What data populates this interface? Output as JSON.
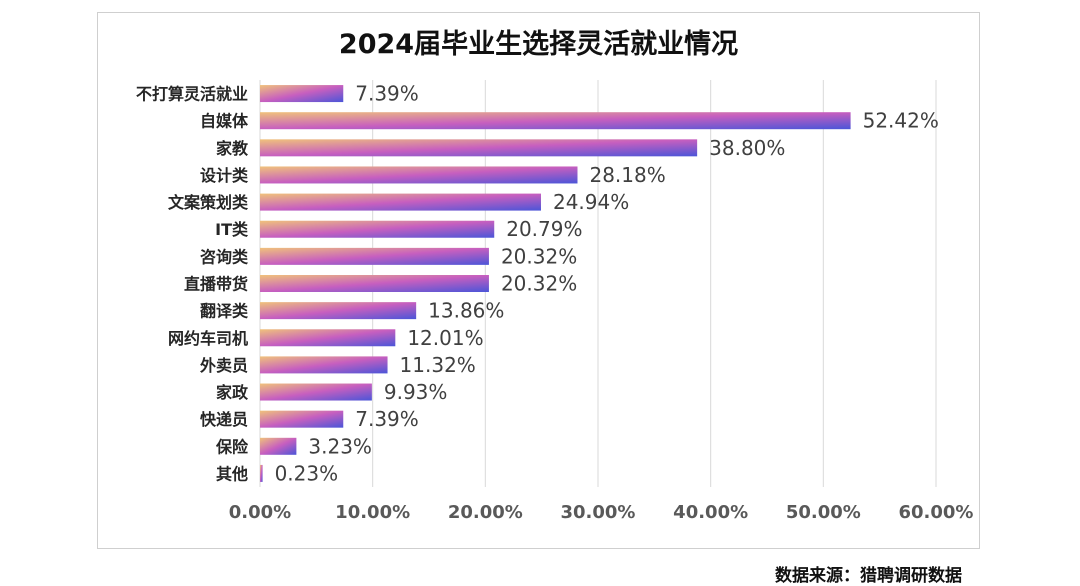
{
  "title": "2024届毕业生选择灵活就业情况",
  "source": "数据来源：猎聘调研数据",
  "colors": {
    "bar_start": "#f0c27b",
    "bar_mid": "#c75fbf",
    "bar_end": "#4b55d8",
    "grid": "#d9d9d9",
    "tick_text": "#595959",
    "category_text": "#262626",
    "value_text": "#404040"
  },
  "chart_data": {
    "type": "bar",
    "orientation": "horizontal",
    "title": "2024届毕业生选择灵活就业情况",
    "xlabel": "",
    "ylabel": "",
    "xlim": [
      0,
      60
    ],
    "x_ticks": [
      "0.00%",
      "10.00%",
      "20.00%",
      "30.00%",
      "40.00%",
      "50.00%",
      "60.00%"
    ],
    "grid": true,
    "legend": "none",
    "categories": [
      "不打算灵活就业",
      "自媒体",
      "家教",
      "设计类",
      "文案策划类",
      "IT类",
      "咨询类",
      "直播带货",
      "翻译类",
      "网约车司机",
      "外卖员",
      "家政",
      "快递员",
      "保险",
      "其他"
    ],
    "values": [
      7.39,
      52.42,
      38.8,
      28.18,
      24.94,
      20.79,
      20.32,
      20.32,
      13.86,
      12.01,
      11.32,
      9.93,
      7.39,
      3.23,
      0.23
    ],
    "value_labels": [
      "7.39%",
      "52.42%",
      "38.80%",
      "28.18%",
      "24.94%",
      "20.79%",
      "20.32%",
      "20.32%",
      "13.86%",
      "12.01%",
      "11.32%",
      "9.93%",
      "7.39%",
      "3.23%",
      "0.23%"
    ]
  }
}
